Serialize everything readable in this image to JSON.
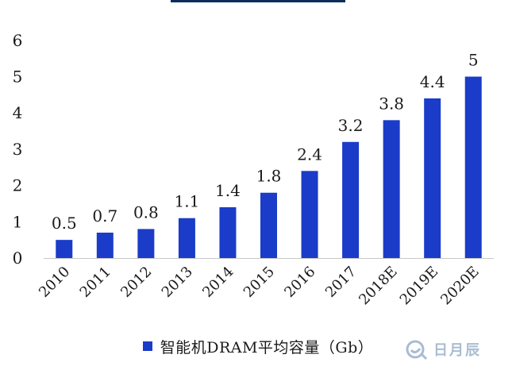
{
  "chart_data": {
    "type": "bar",
    "categories": [
      "2010",
      "2011",
      "2012",
      "2013",
      "2014",
      "2015",
      "2016",
      "2017",
      "2018E",
      "2019E",
      "2020E"
    ],
    "values": [
      0.5,
      0.7,
      0.8,
      1.1,
      1.4,
      1.8,
      2.4,
      3.2,
      3.8,
      4.4,
      5
    ],
    "data_labels": [
      "0.5",
      "0.7",
      "0.8",
      "1.1",
      "1.4",
      "1.8",
      "2.4",
      "3.2",
      "3.8",
      "4.4",
      "5"
    ],
    "y_ticks": [
      "0",
      "1",
      "2",
      "3",
      "4",
      "5",
      "6"
    ],
    "ylim": [
      0,
      6
    ],
    "legend_label": "智能机DRAM平均容量（Gb）",
    "legend_position": "bottom",
    "grid": false,
    "bar_color": "#1a3cc8"
  },
  "watermark": {
    "text": "日月辰"
  }
}
